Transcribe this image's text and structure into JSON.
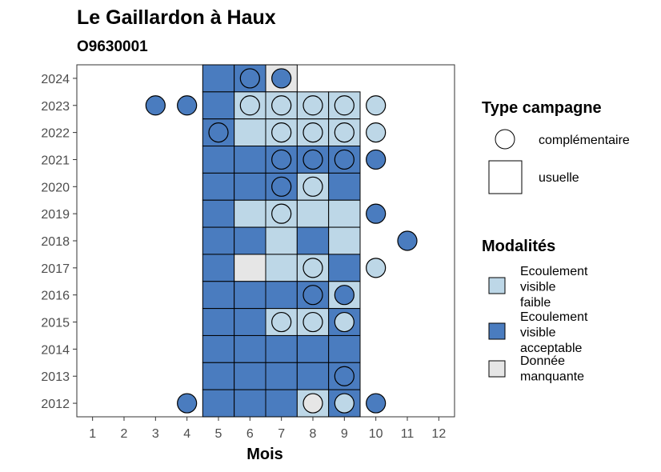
{
  "chart_data": {
    "type": "heatmap",
    "title": "Le Gaillardon à Haux",
    "subtitle": "O9630001",
    "xlabel": "Mois",
    "ylabel": "",
    "x_ticks": [
      1,
      2,
      3,
      4,
      5,
      6,
      7,
      8,
      9,
      10,
      11,
      12
    ],
    "y_ticks": [
      2012,
      2013,
      2014,
      2015,
      2016,
      2017,
      2018,
      2019,
      2020,
      2021,
      2022,
      2023,
      2024
    ],
    "xlim": [
      0.5,
      12.5
    ],
    "ylim": [
      2011.5,
      2024.5
    ],
    "grid": false,
    "legend_position": "right",
    "colors": {
      "faible": "#BDD7E7",
      "acceptable": "#4A7CBF",
      "manquante": "#E6E6E6"
    },
    "legend_type": {
      "title": "Type campagne",
      "items": [
        {
          "label": "complémentaire",
          "shape": "circle"
        },
        {
          "label": "usuelle",
          "shape": "square"
        }
      ]
    },
    "legend_modalites": {
      "title": "Modalités",
      "items": [
        {
          "key": "faible",
          "lines": [
            "Ecoulement",
            "visible",
            "faible"
          ]
        },
        {
          "key": "acceptable",
          "lines": [
            "Ecoulement",
            "visible",
            "acceptable"
          ]
        },
        {
          "key": "manquante",
          "lines": [
            "Donnée",
            "manquante"
          ]
        }
      ]
    },
    "usuelle": [
      {
        "year": 2024,
        "cells": [
          [
            5,
            "acceptable"
          ],
          [
            6,
            "acceptable"
          ],
          [
            7,
            "manquante"
          ]
        ]
      },
      {
        "year": 2023,
        "cells": [
          [
            5,
            "acceptable"
          ],
          [
            6,
            "faible"
          ],
          [
            7,
            "faible"
          ],
          [
            8,
            "faible"
          ],
          [
            9,
            "faible"
          ]
        ]
      },
      {
        "year": 2022,
        "cells": [
          [
            5,
            "acceptable"
          ],
          [
            6,
            "faible"
          ],
          [
            7,
            "faible"
          ],
          [
            8,
            "faible"
          ],
          [
            9,
            "faible"
          ]
        ]
      },
      {
        "year": 2021,
        "cells": [
          [
            5,
            "acceptable"
          ],
          [
            6,
            "acceptable"
          ],
          [
            7,
            "acceptable"
          ],
          [
            8,
            "acceptable"
          ],
          [
            9,
            "acceptable"
          ]
        ]
      },
      {
        "year": 2020,
        "cells": [
          [
            5,
            "acceptable"
          ],
          [
            6,
            "acceptable"
          ],
          [
            7,
            "acceptable"
          ],
          [
            8,
            "faible"
          ],
          [
            9,
            "acceptable"
          ]
        ]
      },
      {
        "year": 2019,
        "cells": [
          [
            5,
            "acceptable"
          ],
          [
            6,
            "faible"
          ],
          [
            7,
            "faible"
          ],
          [
            8,
            "faible"
          ],
          [
            9,
            "faible"
          ]
        ]
      },
      {
        "year": 2018,
        "cells": [
          [
            5,
            "acceptable"
          ],
          [
            6,
            "acceptable"
          ],
          [
            7,
            "faible"
          ],
          [
            8,
            "acceptable"
          ],
          [
            9,
            "faible"
          ]
        ]
      },
      {
        "year": 2017,
        "cells": [
          [
            5,
            "acceptable"
          ],
          [
            6,
            "manquante"
          ],
          [
            7,
            "faible"
          ],
          [
            8,
            "faible"
          ],
          [
            9,
            "acceptable"
          ]
        ]
      },
      {
        "year": 2016,
        "cells": [
          [
            5,
            "acceptable"
          ],
          [
            6,
            "acceptable"
          ],
          [
            7,
            "acceptable"
          ],
          [
            8,
            "acceptable"
          ],
          [
            9,
            "faible"
          ]
        ]
      },
      {
        "year": 2015,
        "cells": [
          [
            5,
            "acceptable"
          ],
          [
            6,
            "acceptable"
          ],
          [
            7,
            "faible"
          ],
          [
            8,
            "faible"
          ],
          [
            9,
            "acceptable"
          ]
        ]
      },
      {
        "year": 2014,
        "cells": [
          [
            5,
            "acceptable"
          ],
          [
            6,
            "acceptable"
          ],
          [
            7,
            "acceptable"
          ],
          [
            8,
            "acceptable"
          ],
          [
            9,
            "acceptable"
          ]
        ]
      },
      {
        "year": 2013,
        "cells": [
          [
            5,
            "acceptable"
          ],
          [
            6,
            "acceptable"
          ],
          [
            7,
            "acceptable"
          ],
          [
            8,
            "acceptable"
          ],
          [
            9,
            "acceptable"
          ]
        ]
      },
      {
        "year": 2012,
        "cells": [
          [
            5,
            "acceptable"
          ],
          [
            6,
            "acceptable"
          ],
          [
            7,
            "acceptable"
          ],
          [
            8,
            "faible"
          ],
          [
            9,
            "acceptable"
          ]
        ]
      }
    ],
    "complementaire": [
      {
        "year": 2024,
        "points": [
          [
            6,
            "acceptable"
          ],
          [
            7,
            "acceptable"
          ]
        ]
      },
      {
        "year": 2023,
        "points": [
          [
            3,
            "acceptable"
          ],
          [
            4,
            "acceptable"
          ],
          [
            6,
            "faible"
          ],
          [
            7,
            "faible"
          ],
          [
            8,
            "faible"
          ],
          [
            9,
            "faible"
          ],
          [
            10,
            "faible"
          ]
        ]
      },
      {
        "year": 2022,
        "points": [
          [
            5,
            "acceptable"
          ],
          [
            7,
            "faible"
          ],
          [
            8,
            "faible"
          ],
          [
            9,
            "faible"
          ],
          [
            10,
            "faible"
          ]
        ]
      },
      {
        "year": 2021,
        "points": [
          [
            7,
            "acceptable"
          ],
          [
            8,
            "acceptable"
          ],
          [
            9,
            "acceptable"
          ],
          [
            10,
            "acceptable"
          ]
        ]
      },
      {
        "year": 2020,
        "points": [
          [
            7,
            "acceptable"
          ],
          [
            8,
            "faible"
          ]
        ]
      },
      {
        "year": 2019,
        "points": [
          [
            7,
            "faible"
          ],
          [
            10,
            "acceptable"
          ]
        ]
      },
      {
        "year": 2018,
        "points": [
          [
            11,
            "acceptable"
          ]
        ]
      },
      {
        "year": 2017,
        "points": [
          [
            8,
            "faible"
          ],
          [
            10,
            "faible"
          ]
        ]
      },
      {
        "year": 2016,
        "points": [
          [
            8,
            "acceptable"
          ],
          [
            9,
            "acceptable"
          ]
        ]
      },
      {
        "year": 2015,
        "points": [
          [
            7,
            "faible"
          ],
          [
            8,
            "faible"
          ],
          [
            9,
            "faible"
          ]
        ]
      },
      {
        "year": 2013,
        "points": [
          [
            9,
            "acceptable"
          ]
        ]
      },
      {
        "year": 2012,
        "points": [
          [
            4,
            "acceptable"
          ],
          [
            8,
            "manquante"
          ],
          [
            9,
            "faible"
          ],
          [
            10,
            "acceptable"
          ]
        ]
      }
    ]
  }
}
